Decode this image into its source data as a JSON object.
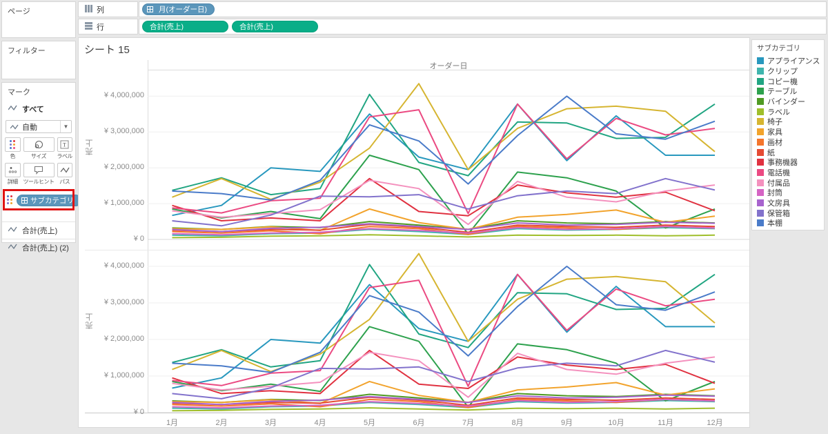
{
  "panels": {
    "pages_label": "ページ",
    "filters_label": "フィルター"
  },
  "marks": {
    "title": "マーク",
    "all_label": "すべて",
    "mark_type": "自動",
    "buttons": {
      "color": "色",
      "size": "サイズ",
      "label": "ラベル",
      "detail": "詳細",
      "tooltip": "ツールヒント",
      "path": "パス"
    },
    "color_pill": "サブカテゴリ",
    "fields": [
      "合計(売上)",
      "合計(売上) (2)"
    ],
    "highlight_color": "#e01212"
  },
  "shelves": {
    "columns_label": "列",
    "rows_label": "行",
    "columns_pills": [
      {
        "label": "月(オーダー日)",
        "color": "#5b96bb",
        "expandable": true
      }
    ],
    "rows_pills": [
      {
        "label": "合計(売上)",
        "color": "#0aae88"
      },
      {
        "label": "合計(売上)",
        "color": "#0aae88"
      }
    ]
  },
  "sheet": {
    "title": "シート 15"
  },
  "legend": {
    "title": "サブカテゴリ"
  },
  "chart_data": {
    "type": "line",
    "title": "オーダー日",
    "ylabel": "売上",
    "panes": 2,
    "grid": "horizontal",
    "legend_position": "right",
    "ylim": [
      0,
      4800000
    ],
    "y_tick_labels": [
      "¥ 0",
      "¥ 1,000,000",
      "¥ 2,000,000",
      "¥ 3,000,000",
      "¥ 4,000,000"
    ],
    "x_categories": [
      "1月",
      "2月",
      "3月",
      "4月",
      "5月",
      "6月",
      "7月",
      "8月",
      "9月",
      "10月",
      "11月",
      "12月"
    ],
    "series": [
      {
        "name": "アプライアンス",
        "color": "#2898be",
        "values": [
          670000,
          950000,
          2000000,
          1900000,
          3500000,
          2300000,
          1950000,
          3780000,
          2200000,
          3450000,
          2350000,
          2350000
        ]
      },
      {
        "name": "クリップ",
        "color": "#3fb5ad",
        "values": [
          120000,
          100000,
          160000,
          180000,
          280000,
          220000,
          140000,
          300000,
          260000,
          280000,
          330000,
          300000
        ]
      },
      {
        "name": "コピー機",
        "color": "#21a582",
        "values": [
          1370000,
          1720000,
          1250000,
          1420000,
          4050000,
          2150000,
          1780000,
          3280000,
          3250000,
          2820000,
          2850000,
          3780000
        ]
      },
      {
        "name": "テーブル",
        "color": "#2da14d",
        "values": [
          850000,
          600000,
          780000,
          580000,
          2350000,
          1950000,
          150000,
          1880000,
          1720000,
          1350000,
          320000,
          850000
        ]
      },
      {
        "name": "バインダー",
        "color": "#4f9a23",
        "values": [
          320000,
          280000,
          360000,
          330000,
          500000,
          400000,
          280000,
          520000,
          460000,
          440000,
          500000,
          460000
        ]
      },
      {
        "name": "ラベル",
        "color": "#9fbe2b",
        "values": [
          50000,
          60000,
          90000,
          100000,
          130000,
          100000,
          70000,
          120000,
          110000,
          120000,
          100000,
          120000
        ]
      },
      {
        "name": "椅子",
        "color": "#d6b531",
        "values": [
          1180000,
          1700000,
          1120000,
          1600000,
          2550000,
          4350000,
          1950000,
          3100000,
          3650000,
          3720000,
          3580000,
          2450000
        ]
      },
      {
        "name": "家具",
        "color": "#f2a32c",
        "values": [
          300000,
          280000,
          350000,
          250000,
          850000,
          470000,
          280000,
          620000,
          700000,
          820000,
          480000,
          650000
        ]
      },
      {
        "name": "画材",
        "color": "#f4752c",
        "values": [
          220000,
          180000,
          240000,
          160000,
          360000,
          300000,
          140000,
          360000,
          320000,
          280000,
          360000,
          320000
        ]
      },
      {
        "name": "紙",
        "color": "#e54a33",
        "values": [
          260000,
          220000,
          280000,
          260000,
          420000,
          340000,
          200000,
          400000,
          360000,
          340000,
          400000,
          360000
        ]
      },
      {
        "name": "事務機器",
        "color": "#e03140",
        "values": [
          950000,
          520000,
          600000,
          520000,
          1700000,
          780000,
          660000,
          1520000,
          1300000,
          1180000,
          1320000,
          800000
        ]
      },
      {
        "name": "電話機",
        "color": "#eb4a82",
        "values": [
          880000,
          740000,
          1080000,
          1150000,
          3420000,
          3620000,
          720000,
          3780000,
          2250000,
          3380000,
          2920000,
          3100000
        ]
      },
      {
        "name": "付属品",
        "color": "#f491be",
        "values": [
          800000,
          620000,
          720000,
          830000,
          1650000,
          1420000,
          420000,
          1620000,
          1180000,
          1050000,
          1350000,
          1520000
        ]
      },
      {
        "name": "封筒",
        "color": "#d564c4",
        "values": [
          160000,
          130000,
          180000,
          200000,
          300000,
          250000,
          180000,
          330000,
          280000,
          300000,
          360000,
          320000
        ]
      },
      {
        "name": "文房具",
        "color": "#a763ce",
        "values": [
          280000,
          220000,
          310000,
          340000,
          440000,
          360000,
          280000,
          460000,
          400000,
          420000,
          480000,
          450000
        ]
      },
      {
        "name": "保管箱",
        "color": "#8272cc",
        "values": [
          520000,
          380000,
          680000,
          1210000,
          1190000,
          1250000,
          850000,
          1220000,
          1350000,
          1280000,
          1700000,
          1380000
        ]
      },
      {
        "name": "本棚",
        "color": "#4a7bc9",
        "values": [
          1350000,
          1280000,
          1100000,
          1650000,
          3200000,
          2750000,
          1550000,
          2900000,
          4000000,
          2950000,
          2800000,
          3300000
        ]
      }
    ]
  }
}
